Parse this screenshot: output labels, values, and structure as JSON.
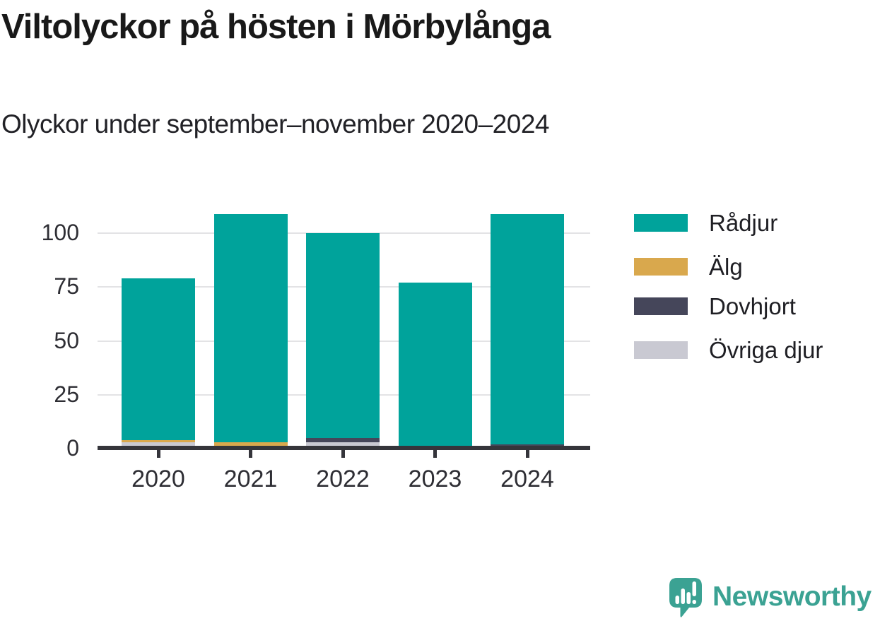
{
  "title": "Viltolyckor på hösten i Mörbylånga",
  "subtitle": "Olyckor under september–november 2020–2024",
  "chart_data": {
    "type": "bar",
    "stacked": true,
    "title": "Viltolyckor på hösten i Mörbylånga",
    "subtitle": "Olyckor under september–november 2020–2024",
    "categories": [
      "2020",
      "2021",
      "2022",
      "2023",
      "2024"
    ],
    "series": [
      {
        "name": "Rådjur",
        "color": "#00a39b",
        "values": [
          75,
          106,
          95,
          77,
          107
        ]
      },
      {
        "name": "Älg",
        "color": "#d9a84d",
        "values": [
          1,
          3,
          0,
          0,
          0
        ]
      },
      {
        "name": "Dovhjort",
        "color": "#45465a",
        "values": [
          0,
          0,
          2,
          0,
          1
        ]
      },
      {
        "name": "Övriga djur",
        "color": "#c9c9d2",
        "values": [
          3,
          0,
          3,
          0,
          1
        ]
      }
    ],
    "totals": [
      79,
      109,
      100,
      77,
      109
    ],
    "stack_order_bottom_to_top": [
      "Övriga djur",
      "Dovhjort",
      "Älg",
      "Rådjur"
    ],
    "xlabel": "",
    "ylabel": "",
    "y_ticks": [
      0,
      25,
      50,
      75,
      100
    ],
    "ylim": [
      0,
      112
    ],
    "grid": true,
    "legend_position": "right",
    "axis_color": "#35353b",
    "grid_color": "#e3e3e5"
  },
  "branding": {
    "logo_text": "Newsworthy",
    "logo_color": "#3ba293",
    "logo_icon": "chart-speech-bubble-icon"
  }
}
